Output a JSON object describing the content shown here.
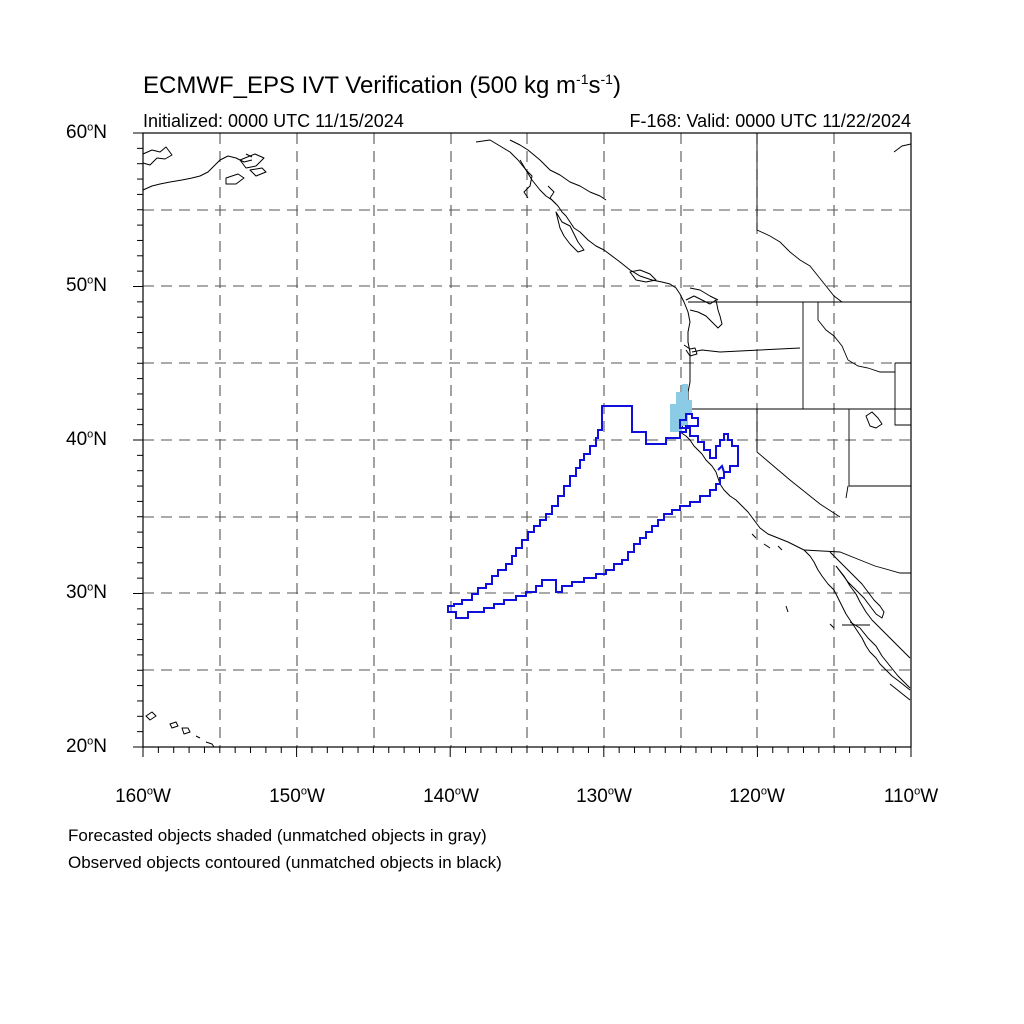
{
  "title": {
    "main": "ECMWF_EPS IVT Verification (500 kg m",
    "exp1": "-1",
    "mid": "s",
    "exp2": "-1",
    "end": ")"
  },
  "subtitle": {
    "left": "Initialized: 0000 UTC 11/15/2024",
    "right": "F-168: Valid: 0000 UTC 11/22/2024"
  },
  "axes": {
    "degree_symbol": "o",
    "lat_labels": [
      {
        "num": "60",
        "hemi": "N"
      },
      {
        "num": "50",
        "hemi": "N"
      },
      {
        "num": "40",
        "hemi": "N"
      },
      {
        "num": "30",
        "hemi": "N"
      },
      {
        "num": "20",
        "hemi": "N"
      }
    ],
    "lon_labels": [
      {
        "num": "160",
        "hemi": "W"
      },
      {
        "num": "150",
        "hemi": "W"
      },
      {
        "num": "140",
        "hemi": "W"
      },
      {
        "num": "130",
        "hemi": "W"
      },
      {
        "num": "120",
        "hemi": "W"
      },
      {
        "num": "110",
        "hemi": "W"
      }
    ]
  },
  "notes": {
    "line1": "Forecasted objects shaded (unmatched objects in gray)",
    "line2": "Observed objects contoured (unmatched objects in black)"
  },
  "colors": {
    "observed_contour": "#1010dd",
    "forecast_shade": "#8ccbe6",
    "coastline": "#000000",
    "grid": "#555555"
  },
  "map_extent": {
    "lon_min": -160,
    "lon_max": -110,
    "lat_min": 20,
    "lat_max": 60
  }
}
